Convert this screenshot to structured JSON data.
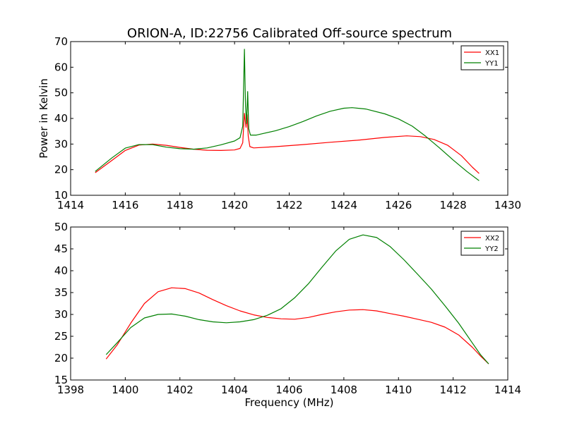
{
  "figure": {
    "title": "ORION-A, ID:22756 Calibrated Off-source spectrum"
  },
  "chart_data": [
    {
      "type": "line",
      "title": "ORION-A, ID:22756 Calibrated Off-source spectrum",
      "xlabel": "",
      "ylabel": "Power in Kelvin",
      "xlim": [
        1414,
        1430
      ],
      "ylim": [
        10,
        70
      ],
      "xticks": [
        1414,
        1416,
        1418,
        1420,
        1422,
        1424,
        1426,
        1428,
        1430
      ],
      "yticks": [
        10,
        20,
        30,
        40,
        50,
        60,
        70
      ],
      "grid": false,
      "legend": "top-right",
      "series": [
        {
          "name": "XX1",
          "color": "#ff0000",
          "points": [
            [
              1414.9,
              18.8
            ],
            [
              1415.5,
              23.5
            ],
            [
              1416.0,
              27.5
            ],
            [
              1416.5,
              29.6
            ],
            [
              1417.0,
              30.0
            ],
            [
              1417.5,
              29.5
            ],
            [
              1418.0,
              28.7
            ],
            [
              1418.5,
              28.0
            ],
            [
              1419.0,
              27.6
            ],
            [
              1419.5,
              27.5
            ],
            [
              1420.0,
              27.7
            ],
            [
              1420.2,
              28.3
            ],
            [
              1420.3,
              30.5
            ],
            [
              1420.36,
              42.0
            ],
            [
              1420.42,
              36.5
            ],
            [
              1420.46,
              41.5
            ],
            [
              1420.5,
              33.0
            ],
            [
              1420.56,
              29.0
            ],
            [
              1420.7,
              28.5
            ],
            [
              1421.5,
              29.0
            ],
            [
              1422.5,
              29.8
            ],
            [
              1423.5,
              30.7
            ],
            [
              1424.5,
              31.5
            ],
            [
              1425.5,
              32.6
            ],
            [
              1426.3,
              33.2
            ],
            [
              1426.8,
              32.9
            ],
            [
              1427.3,
              31.8
            ],
            [
              1427.8,
              29.5
            ],
            [
              1428.3,
              25.5
            ],
            [
              1428.7,
              21.0
            ],
            [
              1428.95,
              18.5
            ]
          ]
        },
        {
          "name": "YY1",
          "color": "#008000",
          "points": [
            [
              1414.9,
              19.3
            ],
            [
              1415.5,
              24.5
            ],
            [
              1416.0,
              28.4
            ],
            [
              1416.5,
              29.8
            ],
            [
              1417.0,
              29.8
            ],
            [
              1417.5,
              28.8
            ],
            [
              1418.0,
              28.2
            ],
            [
              1418.5,
              28.0
            ],
            [
              1419.0,
              28.5
            ],
            [
              1419.5,
              29.7
            ],
            [
              1420.0,
              31.2
            ],
            [
              1420.2,
              32.5
            ],
            [
              1420.3,
              37.0
            ],
            [
              1420.36,
              67.0
            ],
            [
              1420.4,
              45.0
            ],
            [
              1420.44,
              38.0
            ],
            [
              1420.48,
              50.5
            ],
            [
              1420.52,
              36.0
            ],
            [
              1420.58,
              33.5
            ],
            [
              1420.8,
              33.5
            ],
            [
              1421.5,
              35.2
            ],
            [
              1422.0,
              36.8
            ],
            [
              1422.5,
              38.8
            ],
            [
              1423.0,
              41.0
            ],
            [
              1423.5,
              42.8
            ],
            [
              1424.0,
              44.0
            ],
            [
              1424.3,
              44.2
            ],
            [
              1424.8,
              43.7
            ],
            [
              1425.5,
              41.8
            ],
            [
              1426.0,
              39.8
            ],
            [
              1426.5,
              37.0
            ],
            [
              1427.0,
              33.0
            ],
            [
              1427.5,
              28.5
            ],
            [
              1428.0,
              23.8
            ],
            [
              1428.5,
              19.3
            ],
            [
              1428.95,
              15.7
            ]
          ]
        }
      ]
    },
    {
      "type": "line",
      "title": "",
      "xlabel": "Frequency (MHz)",
      "ylabel": "",
      "xlim": [
        1398,
        1414
      ],
      "ylim": [
        15,
        50
      ],
      "xticks": [
        1398,
        1400,
        1402,
        1404,
        1406,
        1408,
        1410,
        1412,
        1414
      ],
      "yticks": [
        15,
        20,
        25,
        30,
        35,
        40,
        45,
        50
      ],
      "grid": false,
      "legend": "top-right",
      "series": [
        {
          "name": "XX2",
          "color": "#ff0000",
          "points": [
            [
              1399.3,
              19.8
            ],
            [
              1399.7,
              23.0
            ],
            [
              1400.2,
              28.0
            ],
            [
              1400.7,
              32.5
            ],
            [
              1401.2,
              35.2
            ],
            [
              1401.7,
              36.1
            ],
            [
              1402.2,
              35.9
            ],
            [
              1402.7,
              34.9
            ],
            [
              1403.2,
              33.4
            ],
            [
              1403.7,
              32.0
            ],
            [
              1404.2,
              30.8
            ],
            [
              1404.7,
              29.9
            ],
            [
              1405.2,
              29.3
            ],
            [
              1405.7,
              29.0
            ],
            [
              1406.2,
              28.9
            ],
            [
              1406.7,
              29.3
            ],
            [
              1407.2,
              30.0
            ],
            [
              1407.7,
              30.6
            ],
            [
              1408.2,
              31.0
            ],
            [
              1408.7,
              31.1
            ],
            [
              1409.2,
              30.8
            ],
            [
              1409.7,
              30.2
            ],
            [
              1410.2,
              29.6
            ],
            [
              1410.7,
              28.9
            ],
            [
              1411.2,
              28.2
            ],
            [
              1411.7,
              27.1
            ],
            [
              1412.2,
              25.3
            ],
            [
              1412.7,
              22.5
            ],
            [
              1413.0,
              20.5
            ],
            [
              1413.3,
              18.7
            ]
          ]
        },
        {
          "name": "YY2",
          "color": "#008000",
          "points": [
            [
              1399.3,
              20.8
            ],
            [
              1399.7,
              23.5
            ],
            [
              1400.2,
              27.0
            ],
            [
              1400.7,
              29.2
            ],
            [
              1401.2,
              30.0
            ],
            [
              1401.7,
              30.1
            ],
            [
              1402.2,
              29.6
            ],
            [
              1402.7,
              28.8
            ],
            [
              1403.2,
              28.3
            ],
            [
              1403.7,
              28.1
            ],
            [
              1404.2,
              28.3
            ],
            [
              1404.7,
              28.8
            ],
            [
              1405.2,
              29.8
            ],
            [
              1405.7,
              31.3
            ],
            [
              1406.2,
              33.8
            ],
            [
              1406.7,
              37.0
            ],
            [
              1407.2,
              40.8
            ],
            [
              1407.7,
              44.5
            ],
            [
              1408.2,
              47.2
            ],
            [
              1408.7,
              48.2
            ],
            [
              1409.2,
              47.6
            ],
            [
              1409.7,
              45.5
            ],
            [
              1410.2,
              42.5
            ],
            [
              1410.7,
              39.2
            ],
            [
              1411.2,
              35.8
            ],
            [
              1411.7,
              32.0
            ],
            [
              1412.2,
              28.0
            ],
            [
              1412.7,
              23.5
            ],
            [
              1413.0,
              20.8
            ],
            [
              1413.3,
              18.7
            ]
          ]
        }
      ]
    }
  ]
}
